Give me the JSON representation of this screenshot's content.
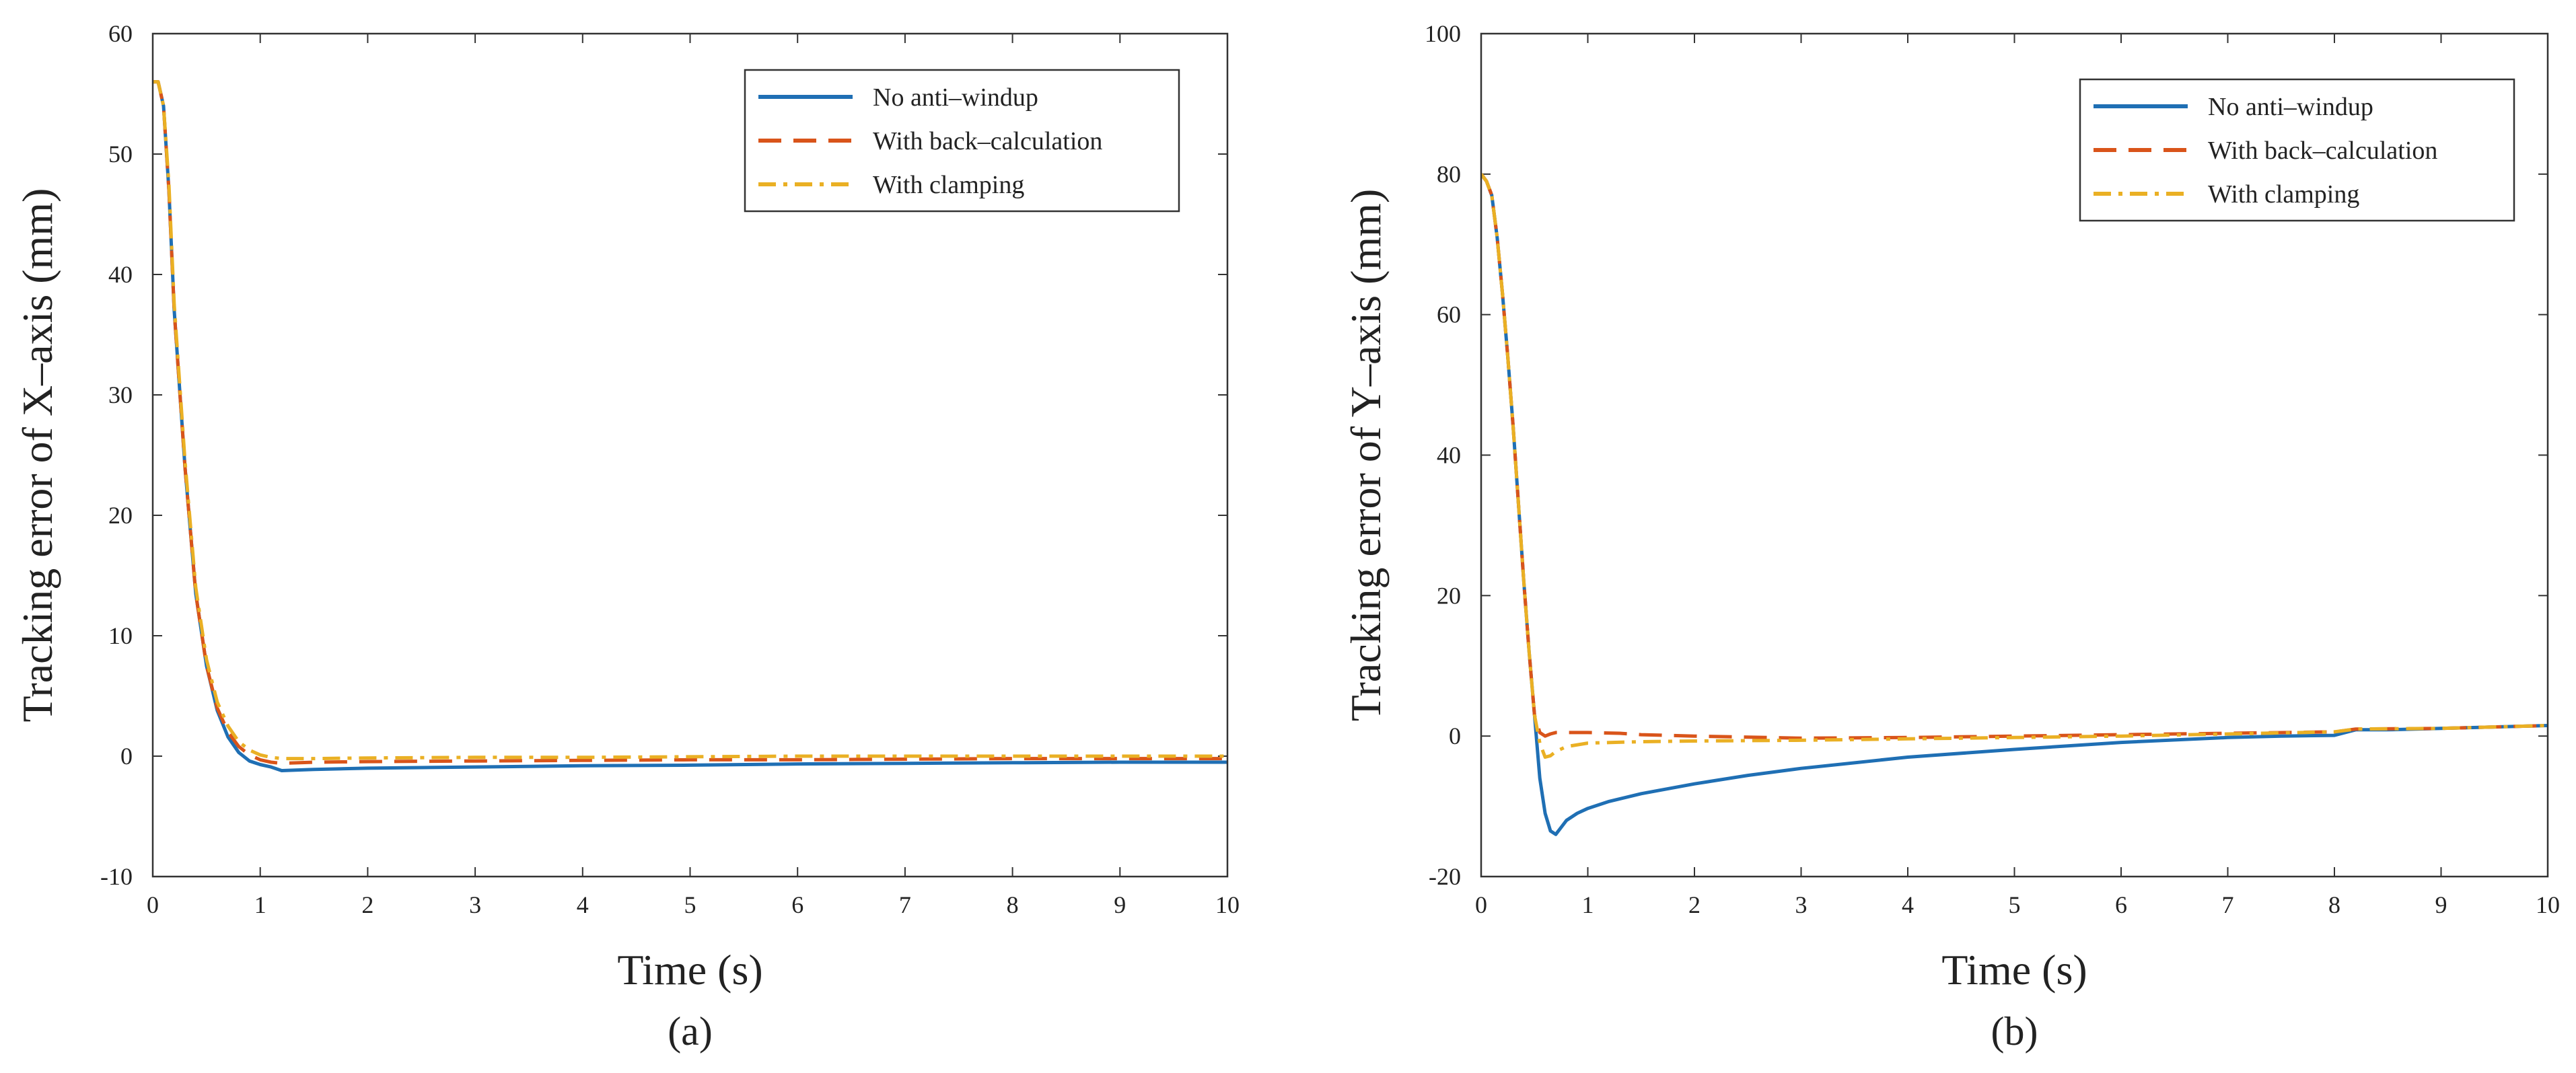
{
  "chart_data": [
    {
      "type": "line",
      "panel_label": "(a)",
      "xlabel": "Time (s)",
      "ylabel": "Tracking error of X–axis  (mm)",
      "xlim": [
        0,
        10
      ],
      "ylim": [
        -10,
        60
      ],
      "xticks": [
        0,
        1,
        2,
        3,
        4,
        5,
        6,
        7,
        8,
        9,
        10
      ],
      "yticks": [
        -10,
        0,
        10,
        20,
        30,
        40,
        50,
        60
      ],
      "ytick_labels": [
        "-10",
        "0",
        "10",
        "20",
        "30",
        "40",
        "50",
        "60"
      ],
      "legend_position": "top-right",
      "series": [
        {
          "name": "No anti–windup",
          "color": "#1f6fb4",
          "style": "solid",
          "x": [
            0,
            0.05,
            0.1,
            0.15,
            0.2,
            0.3,
            0.4,
            0.5,
            0.6,
            0.7,
            0.8,
            0.9,
            1.0,
            1.1,
            1.2,
            1.5,
            2,
            3,
            4,
            5,
            6,
            7,
            8,
            9,
            10
          ],
          "y": [
            56,
            56,
            54,
            47,
            37,
            24,
            13.5,
            7.5,
            3.8,
            1.6,
            0.3,
            -0.4,
            -0.7,
            -0.9,
            -1.2,
            -1.1,
            -1.0,
            -0.9,
            -0.8,
            -0.75,
            -0.65,
            -0.6,
            -0.55,
            -0.5,
            -0.5
          ]
        },
        {
          "name": "With back–calculation",
          "color": "#d9541a",
          "style": "dashed",
          "x": [
            0,
            0.05,
            0.1,
            0.15,
            0.2,
            0.3,
            0.4,
            0.5,
            0.6,
            0.7,
            0.8,
            0.9,
            1.0,
            1.1,
            1.2,
            1.5,
            2,
            3,
            4,
            5,
            6,
            7,
            8,
            9,
            10
          ],
          "y": [
            56,
            56,
            54,
            47,
            37,
            24,
            13.5,
            7.5,
            4.0,
            2.0,
            0.8,
            0.1,
            -0.3,
            -0.5,
            -0.6,
            -0.5,
            -0.45,
            -0.4,
            -0.35,
            -0.3,
            -0.3,
            -0.25,
            -0.2,
            -0.2,
            -0.2
          ]
        },
        {
          "name": "With clamping",
          "color": "#eab024",
          "style": "dashdot",
          "x": [
            0,
            0.05,
            0.1,
            0.15,
            0.2,
            0.3,
            0.4,
            0.5,
            0.6,
            0.7,
            0.8,
            0.9,
            1.0,
            1.1,
            1.2,
            1.5,
            2,
            3,
            4,
            5,
            6,
            7,
            8,
            9,
            10
          ],
          "y": [
            56,
            56,
            54,
            47.5,
            37.5,
            24.5,
            14,
            8,
            4.5,
            2.5,
            1.2,
            0.5,
            0.1,
            -0.1,
            -0.2,
            -0.2,
            -0.15,
            -0.1,
            -0.1,
            -0.05,
            0,
            0,
            0,
            0,
            0
          ]
        }
      ]
    },
    {
      "type": "line",
      "panel_label": "(b)",
      "xlabel": "Time (s)",
      "ylabel": "Tracking error of Y–axis  (mm)",
      "xlim": [
        0,
        10
      ],
      "ylim": [
        -20,
        100
      ],
      "xticks": [
        0,
        1,
        2,
        3,
        4,
        5,
        6,
        7,
        8,
        9,
        10
      ],
      "yticks": [
        -20,
        0,
        20,
        40,
        60,
        80,
        100
      ],
      "ytick_labels": [
        "-20",
        "0",
        "20",
        "40",
        "60",
        "80",
        "100"
      ],
      "legend_position": "top-right",
      "series": [
        {
          "name": "No anti–windup",
          "color": "#1f6fb4",
          "style": "solid",
          "x": [
            0,
            0.05,
            0.1,
            0.15,
            0.2,
            0.25,
            0.3,
            0.35,
            0.4,
            0.45,
            0.5,
            0.55,
            0.6,
            0.65,
            0.7,
            0.75,
            0.8,
            0.9,
            1.0,
            1.2,
            1.5,
            2,
            2.5,
            3,
            4,
            5,
            6,
            7,
            7.5,
            8,
            8.2,
            8.5,
            9,
            10
          ],
          "y": [
            80,
            79,
            77,
            71,
            63,
            54,
            44,
            33,
            22,
            12,
            3,
            -6,
            -11,
            -13.5,
            -14,
            -13,
            -12,
            -11,
            -10.3,
            -9.3,
            -8.2,
            -6.8,
            -5.6,
            -4.6,
            -3.0,
            -1.9,
            -0.9,
            -0.2,
            0,
            0.1,
            0.9,
            0.9,
            1.1,
            1.5
          ]
        },
        {
          "name": "With back–calculation",
          "color": "#d9541a",
          "style": "dashed",
          "x": [
            0,
            0.05,
            0.1,
            0.15,
            0.2,
            0.25,
            0.3,
            0.35,
            0.4,
            0.45,
            0.5,
            0.55,
            0.6,
            0.65,
            0.7,
            0.8,
            1.0,
            1.3,
            1.5,
            2,
            3,
            4,
            5,
            6,
            7,
            8,
            8.2,
            9,
            10
          ],
          "y": [
            80,
            79,
            77,
            71,
            63,
            54,
            44,
            33,
            22,
            12,
            3,
            0.5,
            0,
            0.3,
            0.5,
            0.5,
            0.5,
            0.4,
            0.2,
            0,
            -0.3,
            -0.2,
            0,
            0.2,
            0.4,
            0.6,
            1.0,
            1.1,
            1.5
          ]
        },
        {
          "name": "With clamping",
          "color": "#eab024",
          "style": "dashdot",
          "x": [
            0,
            0.05,
            0.1,
            0.15,
            0.2,
            0.25,
            0.3,
            0.35,
            0.4,
            0.45,
            0.5,
            0.55,
            0.6,
            0.65,
            0.7,
            0.8,
            1.0,
            1.5,
            2,
            3,
            4,
            5,
            6,
            7,
            8,
            8.2,
            9,
            10
          ],
          "y": [
            80,
            79,
            77,
            71,
            63,
            54,
            44,
            33,
            22,
            12,
            3,
            -1,
            -3,
            -2.8,
            -2.2,
            -1.5,
            -1.0,
            -0.8,
            -0.7,
            -0.6,
            -0.4,
            -0.2,
            0,
            0.3,
            0.6,
            1.0,
            1.1,
            1.5
          ]
        }
      ]
    }
  ]
}
